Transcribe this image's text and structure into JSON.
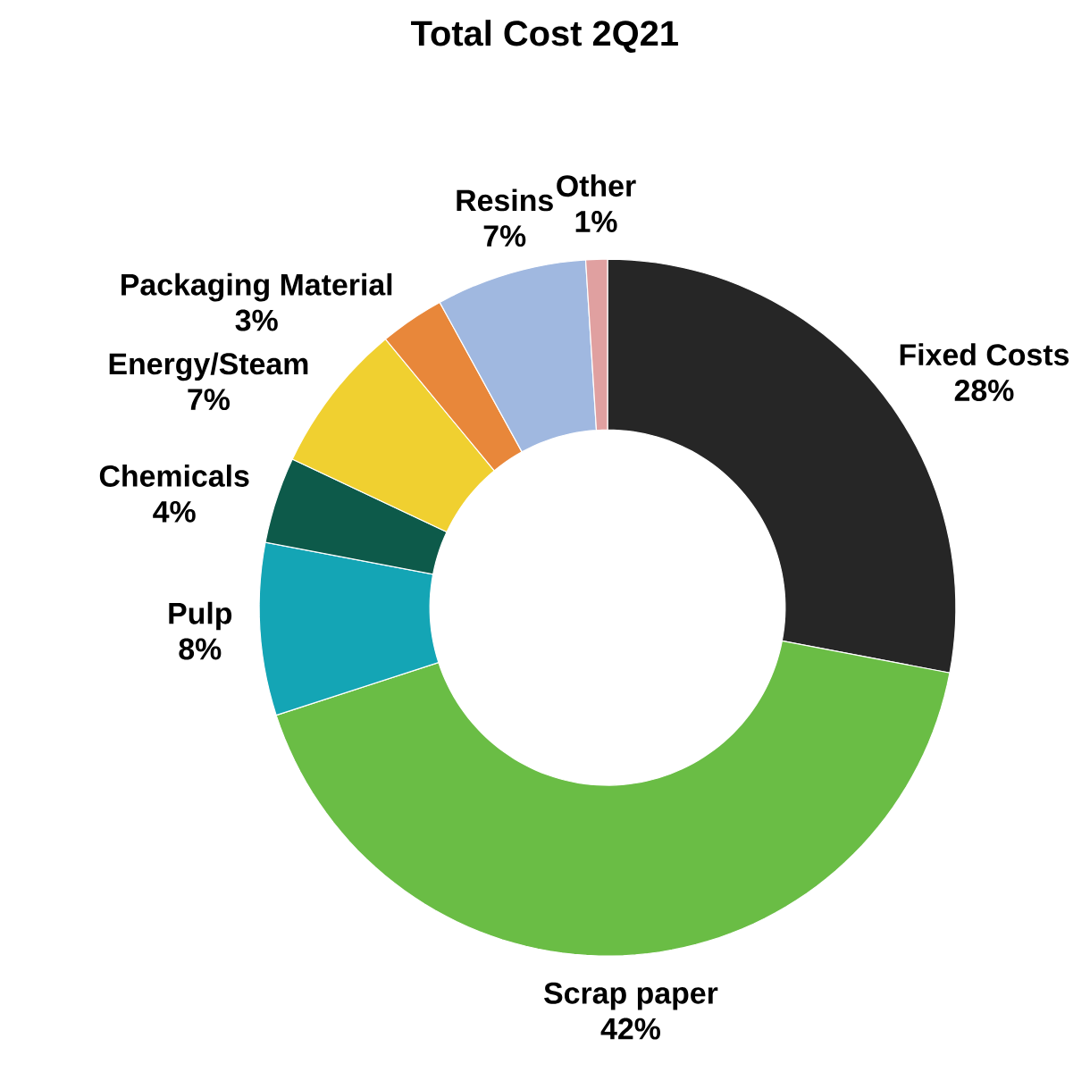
{
  "chart_data": {
    "type": "donut",
    "title": "Total Cost 2Q21",
    "categories": [
      "Fixed Costs",
      "Scrap paper",
      "Pulp",
      "Chemicals",
      "Energy/Steam",
      "Packaging Material",
      "Resins",
      "Other"
    ],
    "values": [
      28,
      42,
      8,
      4,
      7,
      3,
      7,
      1
    ],
    "value_labels": [
      "28%",
      "42%",
      "8%",
      "4%",
      "7%",
      "3%",
      "7%",
      "1%"
    ],
    "colors": [
      "#262626",
      "#6abd45",
      "#14a5b5",
      "#0d5a4a",
      "#f0d030",
      "#e8873a",
      "#a0b8e0",
      "#e0a0a0"
    ]
  }
}
